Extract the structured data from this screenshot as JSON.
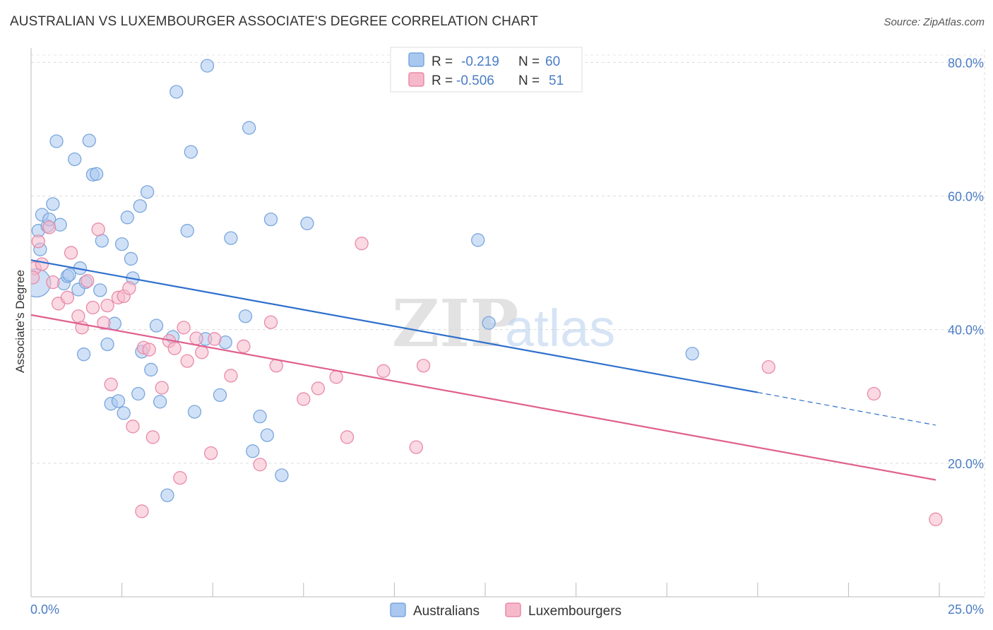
{
  "header": {
    "title": "AUSTRALIAN VS LUXEMBOURGER ASSOCIATE'S DEGREE CORRELATION CHART",
    "source": "Source: ZipAtlas.com"
  },
  "watermark": {
    "zip": "ZIP",
    "atlas": "atlas"
  },
  "colors": {
    "blue_fill": "#a9c8f0",
    "blue_stroke": "#7aa6dc",
    "blue_line": "#2e6fcc",
    "pink_fill": "#f6b9cc",
    "pink_stroke": "#e98aa8",
    "pink_line": "#e0608e",
    "tick_text": "#4a7cc4"
  },
  "legend": {
    "r_label": "R =",
    "n_label": "N =",
    "rows": [
      {
        "r": "-0.219",
        "n": "60"
      },
      {
        "r": "-0.506",
        "n": "51"
      }
    ]
  },
  "chart_data": {
    "type": "scatter",
    "title": "AUSTRALIAN VS LUXEMBOURGER ASSOCIATE'S DEGREE CORRELATION CHART",
    "xlabel": "",
    "ylabel": "Associate's Degree",
    "xlim": [
      0,
      25
    ],
    "ylim": [
      0,
      83
    ],
    "x_tick_labels": [
      "0.0%",
      "25.0%"
    ],
    "y_ticks": [
      20,
      40,
      60,
      80
    ],
    "y_tick_labels": [
      "20.0%",
      "40.0%",
      "60.0%",
      "80.0%"
    ],
    "grid": true,
    "legend_position": "top-center",
    "series": [
      {
        "name": "Australians",
        "r": -0.219,
        "n": 60,
        "trend": {
          "x": [
            0,
            20
          ],
          "y": [
            50.4,
            30.6
          ]
        },
        "trend_dashed": {
          "x": [
            20,
            24.9
          ],
          "y": [
            30.6,
            25.7
          ]
        },
        "points": [
          [
            0.15,
            47.0
          ],
          [
            0.2,
            54.8
          ],
          [
            0.25,
            52.0
          ],
          [
            0.3,
            57.2
          ],
          [
            0.45,
            55.5
          ],
          [
            0.5,
            56.5
          ],
          [
            0.6,
            58.8
          ],
          [
            0.7,
            68.2
          ],
          [
            0.8,
            55.7
          ],
          [
            0.9,
            46.9
          ],
          [
            1.0,
            48.0
          ],
          [
            1.05,
            48.2
          ],
          [
            1.2,
            65.5
          ],
          [
            1.3,
            46.0
          ],
          [
            1.35,
            49.2
          ],
          [
            1.45,
            36.3
          ],
          [
            1.5,
            47.1
          ],
          [
            1.6,
            68.3
          ],
          [
            1.7,
            63.2
          ],
          [
            1.8,
            63.3
          ],
          [
            1.9,
            45.9
          ],
          [
            1.95,
            53.3
          ],
          [
            2.1,
            37.8
          ],
          [
            2.2,
            28.9
          ],
          [
            2.3,
            40.9
          ],
          [
            2.4,
            29.3
          ],
          [
            2.5,
            52.8
          ],
          [
            2.55,
            27.5
          ],
          [
            2.65,
            56.8
          ],
          [
            2.75,
            50.6
          ],
          [
            2.8,
            47.7
          ],
          [
            2.95,
            30.4
          ],
          [
            3.0,
            58.5
          ],
          [
            3.05,
            36.7
          ],
          [
            3.2,
            60.6
          ],
          [
            3.3,
            34.0
          ],
          [
            3.45,
            40.6
          ],
          [
            3.55,
            29.2
          ],
          [
            3.75,
            15.2
          ],
          [
            3.9,
            38.9
          ],
          [
            4.0,
            75.6
          ],
          [
            4.3,
            54.8
          ],
          [
            4.4,
            66.6
          ],
          [
            4.5,
            27.7
          ],
          [
            4.8,
            38.6
          ],
          [
            4.85,
            79.5
          ],
          [
            5.2,
            30.2
          ],
          [
            5.35,
            38.1
          ],
          [
            5.5,
            53.7
          ],
          [
            5.9,
            42.0
          ],
          [
            6.0,
            70.2
          ],
          [
            6.1,
            21.8
          ],
          [
            6.3,
            27.0
          ],
          [
            6.5,
            24.2
          ],
          [
            6.6,
            56.5
          ],
          [
            6.9,
            18.2
          ],
          [
            7.6,
            55.9
          ],
          [
            12.3,
            53.4
          ],
          [
            12.6,
            41.0
          ],
          [
            18.2,
            36.4
          ]
        ]
      },
      {
        "name": "Luxembourgers",
        "r": -0.506,
        "n": 51,
        "trend": {
          "x": [
            0,
            24.9
          ],
          "y": [
            42.2,
            17.5
          ]
        },
        "points": [
          [
            0.1,
            49.2
          ],
          [
            0.2,
            53.2
          ],
          [
            0.3,
            49.8
          ],
          [
            0.5,
            55.3
          ],
          [
            0.6,
            47.1
          ],
          [
            0.75,
            43.9
          ],
          [
            1.0,
            44.8
          ],
          [
            1.1,
            51.5
          ],
          [
            1.3,
            42.0
          ],
          [
            1.4,
            40.3
          ],
          [
            1.55,
            47.3
          ],
          [
            1.7,
            43.3
          ],
          [
            1.85,
            55.0
          ],
          [
            2.0,
            41.0
          ],
          [
            2.1,
            43.6
          ],
          [
            2.2,
            31.8
          ],
          [
            2.4,
            44.8
          ],
          [
            2.55,
            45.0
          ],
          [
            2.7,
            46.2
          ],
          [
            2.8,
            25.5
          ],
          [
            3.05,
            12.8
          ],
          [
            3.1,
            37.3
          ],
          [
            3.25,
            37.0
          ],
          [
            3.35,
            23.9
          ],
          [
            3.6,
            31.3
          ],
          [
            3.8,
            38.3
          ],
          [
            3.95,
            37.2
          ],
          [
            4.1,
            17.8
          ],
          [
            4.2,
            40.3
          ],
          [
            4.3,
            35.3
          ],
          [
            4.55,
            38.7
          ],
          [
            4.7,
            36.6
          ],
          [
            4.95,
            21.5
          ],
          [
            5.05,
            38.6
          ],
          [
            5.5,
            33.1
          ],
          [
            5.85,
            37.5
          ],
          [
            6.3,
            19.8
          ],
          [
            6.6,
            41.1
          ],
          [
            6.75,
            34.6
          ],
          [
            7.5,
            29.6
          ],
          [
            7.9,
            31.2
          ],
          [
            8.4,
            32.9
          ],
          [
            8.7,
            23.9
          ],
          [
            9.1,
            52.9
          ],
          [
            9.7,
            33.8
          ],
          [
            10.6,
            22.4
          ],
          [
            10.8,
            34.6
          ],
          [
            20.3,
            34.4
          ],
          [
            23.2,
            30.4
          ],
          [
            24.9,
            11.6
          ],
          [
            0.05,
            47.8
          ]
        ]
      }
    ]
  }
}
